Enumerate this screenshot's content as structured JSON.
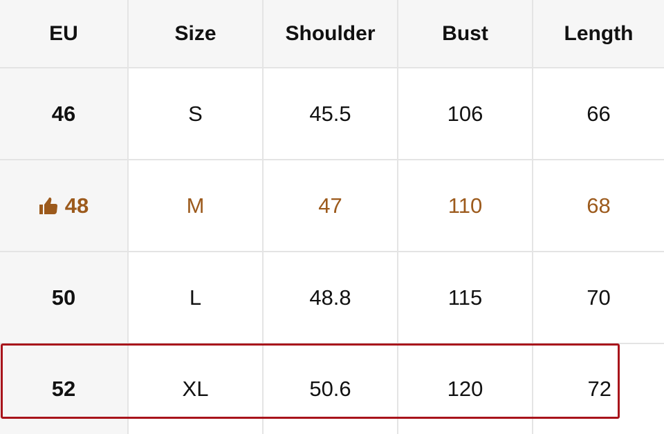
{
  "headers": [
    "EU",
    "Size",
    "Shoulder",
    "Bust",
    "Length"
  ],
  "rows": [
    {
      "eu": "46",
      "size": "S",
      "shoulder": "45.5",
      "bust": "106",
      "length": "66",
      "recommended": false
    },
    {
      "eu": "48",
      "size": "M",
      "shoulder": "47",
      "bust": "110",
      "length": "68",
      "recommended": true
    },
    {
      "eu": "50",
      "size": "L",
      "shoulder": "48.8",
      "bust": "115",
      "length": "70",
      "recommended": false
    },
    {
      "eu": "52",
      "size": "XL",
      "shoulder": "50.6",
      "bust": "120",
      "length": "72",
      "recommended": false,
      "boxed": true
    }
  ],
  "icons": {
    "recommended": "thumbs-up-icon"
  },
  "colors": {
    "recommended_text": "#9c5a1c",
    "box_border": "#a8141b",
    "header_bg": "#f6f6f6",
    "grid": "#e4e4e4"
  }
}
